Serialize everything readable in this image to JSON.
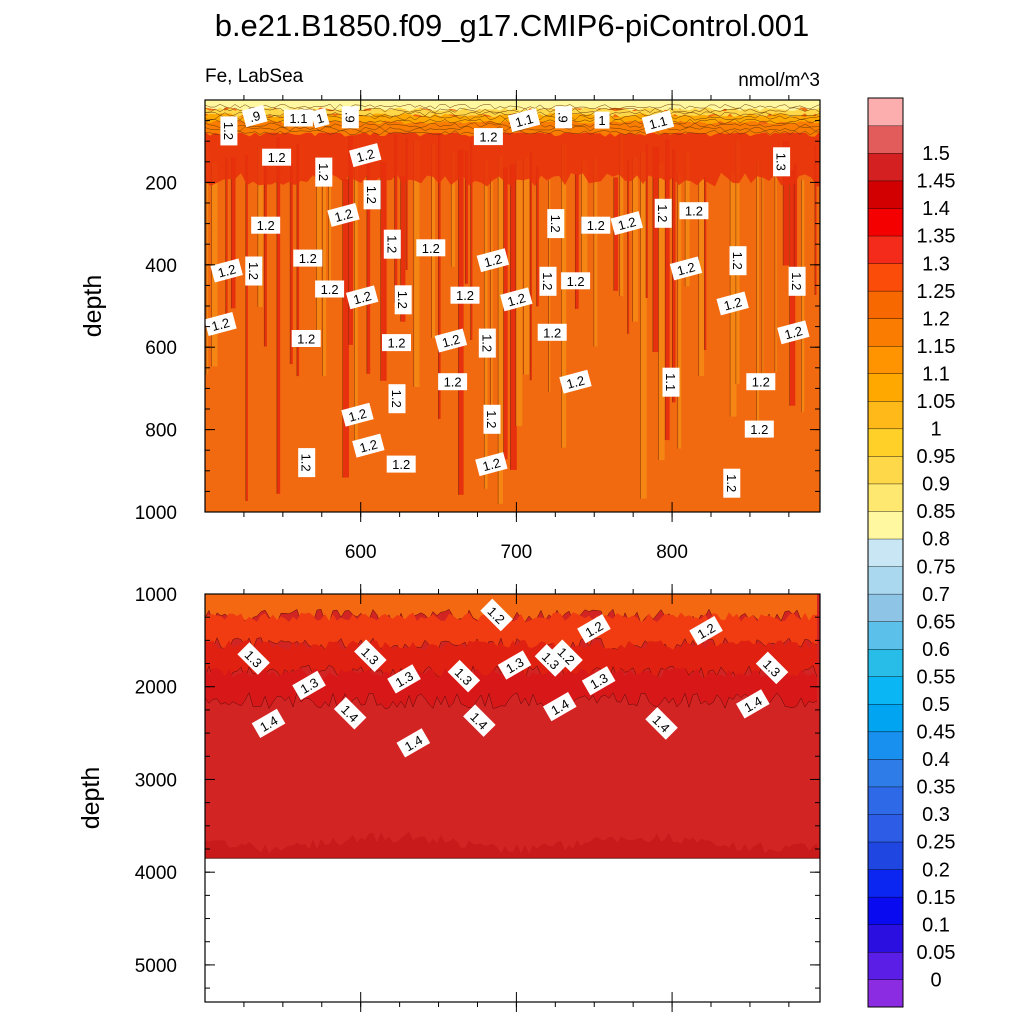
{
  "chart_data": {
    "type": "heatmap",
    "title": "b.e21.B1850.f09_g17.CMIP6-piControl.001",
    "variable_label": "Fe, LabSea",
    "units_label": "nmol/m^3",
    "x_range": [
      500,
      895
    ],
    "x_ticks": [
      "600",
      "700",
      "800"
    ],
    "panels": [
      {
        "name": "upper",
        "ylabel": "depth",
        "ylim": [
          1000,
          0
        ],
        "y_ticks": [
          "200",
          "400",
          "600",
          "800",
          "1000"
        ],
        "contour_labels": [
          {
            "text": ".9",
            "x": 532,
            "y": 40
          },
          {
            "text": "1.2",
            "x": 515,
            "y": 75
          },
          {
            "text": "1.1",
            "x": 560,
            "y": 45
          },
          {
            "text": "1",
            "x": 574,
            "y": 45
          },
          {
            "text": ".9",
            "x": 593,
            "y": 42
          },
          {
            "text": "1.2",
            "x": 546,
            "y": 140
          },
          {
            "text": "1.2",
            "x": 603,
            "y": 135
          },
          {
            "text": "1.2",
            "x": 576,
            "y": 175
          },
          {
            "text": "1.2",
            "x": 682,
            "y": 90
          },
          {
            "text": "1.1",
            "x": 705,
            "y": 50
          },
          {
            "text": ".9",
            "x": 730,
            "y": 42
          },
          {
            "text": "1",
            "x": 755,
            "y": 50
          },
          {
            "text": "1.1",
            "x": 791,
            "y": 55
          },
          {
            "text": "1.3",
            "x": 870,
            "y": 150
          },
          {
            "text": "1.2",
            "x": 539,
            "y": 305
          },
          {
            "text": "1.2",
            "x": 589,
            "y": 280
          },
          {
            "text": "1.2",
            "x": 607,
            "y": 230
          },
          {
            "text": "1.2",
            "x": 566,
            "y": 385
          },
          {
            "text": "1.2",
            "x": 514,
            "y": 415
          },
          {
            "text": "1.2",
            "x": 531,
            "y": 415
          },
          {
            "text": "1.2",
            "x": 580,
            "y": 460
          },
          {
            "text": "1.2",
            "x": 510,
            "y": 545
          },
          {
            "text": "1.2",
            "x": 620,
            "y": 350
          },
          {
            "text": "1.2",
            "x": 645,
            "y": 360
          },
          {
            "text": "1.2",
            "x": 601,
            "y": 480
          },
          {
            "text": "1.2",
            "x": 627,
            "y": 485
          },
          {
            "text": "1.2",
            "x": 565,
            "y": 580
          },
          {
            "text": "1.2",
            "x": 685,
            "y": 390
          },
          {
            "text": "1.2",
            "x": 725,
            "y": 300
          },
          {
            "text": "1.2",
            "x": 751,
            "y": 305
          },
          {
            "text": "1.2",
            "x": 771,
            "y": 300
          },
          {
            "text": "1.2",
            "x": 794,
            "y": 275
          },
          {
            "text": "1.2",
            "x": 814,
            "y": 270
          },
          {
            "text": "1.2",
            "x": 809,
            "y": 410
          },
          {
            "text": "1.2",
            "x": 842,
            "y": 390
          },
          {
            "text": "1.2",
            "x": 667,
            "y": 475
          },
          {
            "text": "1.2",
            "x": 700,
            "y": 485
          },
          {
            "text": "1.2",
            "x": 720,
            "y": 440
          },
          {
            "text": "1.2",
            "x": 738,
            "y": 440
          },
          {
            "text": "1.2",
            "x": 839,
            "y": 495
          },
          {
            "text": "1.2",
            "x": 880,
            "y": 440
          },
          {
            "text": "1.2",
            "x": 623,
            "y": 590
          },
          {
            "text": "1.2",
            "x": 658,
            "y": 585
          },
          {
            "text": "1.2",
            "x": 681,
            "y": 590
          },
          {
            "text": "1.2",
            "x": 723,
            "y": 565
          },
          {
            "text": "1.2",
            "x": 878,
            "y": 565
          },
          {
            "text": "1.2",
            "x": 623,
            "y": 725
          },
          {
            "text": "1.2",
            "x": 659,
            "y": 685
          },
          {
            "text": "1.2",
            "x": 738,
            "y": 685
          },
          {
            "text": "1.1",
            "x": 799,
            "y": 685
          },
          {
            "text": "1.2",
            "x": 857,
            "y": 685
          },
          {
            "text": "1.2",
            "x": 598,
            "y": 765
          },
          {
            "text": "1.2",
            "x": 684,
            "y": 775
          },
          {
            "text": "1.2",
            "x": 856,
            "y": 800
          },
          {
            "text": "1.2",
            "x": 605,
            "y": 840
          },
          {
            "text": "1.2",
            "x": 565,
            "y": 880
          },
          {
            "text": "1.2",
            "x": 626,
            "y": 885
          },
          {
            "text": "1.2",
            "x": 684,
            "y": 885
          },
          {
            "text": "1.2",
            "x": 838,
            "y": 930
          }
        ]
      },
      {
        "name": "lower",
        "ylabel": "depth",
        "ylim": [
          5400,
          1000
        ],
        "y_ticks": [
          "1000",
          "2000",
          "3000",
          "4000",
          "5000"
        ],
        "bottom_depth": 3850,
        "contour_labels": [
          {
            "text": "1.2",
            "x": 687,
            "y": 1230
          },
          {
            "text": "1.2",
            "x": 750,
            "y": 1380
          },
          {
            "text": "1.2",
            "x": 732,
            "y": 1670
          },
          {
            "text": "1.2",
            "x": 822,
            "y": 1400
          },
          {
            "text": "1.3",
            "x": 531,
            "y": 1700
          },
          {
            "text": "1.3",
            "x": 567,
            "y": 1990
          },
          {
            "text": "1.3",
            "x": 606,
            "y": 1670
          },
          {
            "text": "1.3",
            "x": 628,
            "y": 1920
          },
          {
            "text": "1.3",
            "x": 666,
            "y": 1890
          },
          {
            "text": "1.3",
            "x": 699,
            "y": 1770
          },
          {
            "text": "1.3",
            "x": 722,
            "y": 1720
          },
          {
            "text": "1.3",
            "x": 753,
            "y": 1940
          },
          {
            "text": "1.3",
            "x": 864,
            "y": 1800
          },
          {
            "text": "1.4",
            "x": 541,
            "y": 2400
          },
          {
            "text": "1.4",
            "x": 593,
            "y": 2290
          },
          {
            "text": "1.4",
            "x": 634,
            "y": 2610
          },
          {
            "text": "1.4",
            "x": 676,
            "y": 2370
          },
          {
            "text": "1.4",
            "x": 728,
            "y": 2220
          },
          {
            "text": "1.4",
            "x": 793,
            "y": 2400
          },
          {
            "text": "1.4",
            "x": 852,
            "y": 2190
          }
        ]
      }
    ],
    "colorbar": {
      "labels": [
        "0",
        "0.05",
        "0.1",
        "0.15",
        "0.2",
        "0.25",
        "0.3",
        "0.35",
        "0.4",
        "0.45",
        "0.5",
        "0.55",
        "0.6",
        "0.65",
        "0.7",
        "0.75",
        "0.8",
        "0.85",
        "0.9",
        "0.95",
        "1",
        "1.05",
        "1.1",
        "1.15",
        "1.2",
        "1.25",
        "1.3",
        "1.35",
        "1.4",
        "1.45",
        "1.5"
      ],
      "colors": [
        "#8b2be2",
        "#5a1ee6",
        "#2a0fe0",
        "#0a0af0",
        "#0a26f0",
        "#1f46e0",
        "#2d5ce6",
        "#2e6ae8",
        "#2e7ce8",
        "#1890f0",
        "#00a4f0",
        "#0ab6f4",
        "#28bce8",
        "#5bc0ea",
        "#8ec4e6",
        "#aad8ef",
        "#c8e6f4",
        "#fff8a0",
        "#ffe870",
        "#ffd84a",
        "#ffd028",
        "#ffba1a",
        "#ffa800",
        "#ff9400",
        "#fa7c00",
        "#f86800",
        "#fc4c0a",
        "#f42a1a",
        "#f40000",
        "#d20000",
        "#d42020",
        "#e25c5c",
        "#fcaeae"
      ]
    },
    "colors": {
      "upper_base": "#f26a10",
      "upper_alt": "#f58a14",
      "upper_red": "#e42a0e",
      "lower_base": "#d32424",
      "lower_deep": "#c81a1a",
      "lower_top": "#f46812"
    }
  }
}
